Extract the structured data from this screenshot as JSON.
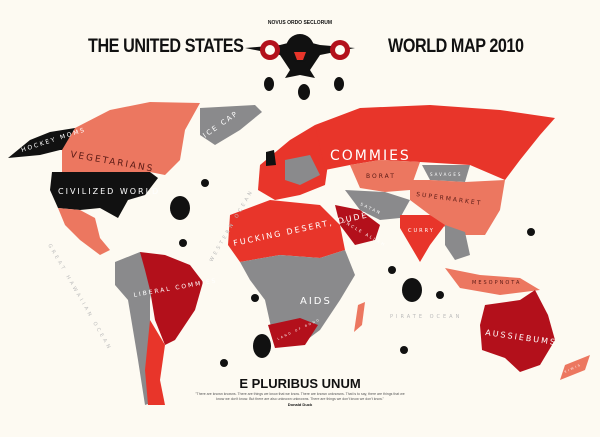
{
  "header": {
    "title_left": "THE UNITED STATES",
    "title_right": "WORLD MAP 2010",
    "emblem_text": "NOVUS ORDO SECLORUM"
  },
  "regions": {
    "alaska": "HOCKEY MOMS",
    "canada": "VEGETARIANS",
    "usa": "CIVILIZED WORLD",
    "greenland": "ICE CAP",
    "russia": "COMMIES",
    "central_asia": "BORAT",
    "mongolia": "SAVAGES",
    "china": "SUPERMARKET",
    "middle_east": "SATAN",
    "arabia": "UNCLE ALLAH",
    "india": "CURRY",
    "north_africa": "FUCKING DESERT, DUDE",
    "africa": "AIDS",
    "south_africa": "LAND OF BONO",
    "brazil": "LIBERAL COMMIES",
    "indonesia": "MESOPNOTA",
    "australia": "AUSSIEBUMS",
    "new_zealand": "KIWIS"
  },
  "oceans": {
    "pacific": "GREAT HAWAIIAN OCEAN",
    "atlantic": "WESTERN OCEAN",
    "indian": "PIRATE OCEAN"
  },
  "footer": {
    "motto": "E PLURIBUS UNUM",
    "quote": "\"There are known knowns. There are things we know that we know. There are known unknowns. That is to say, there are things that we know we don't know. But there are also unknown unknowns. There are things we don't know we don't know.\"",
    "author": "Donald Duck"
  },
  "colors": {
    "background": "#fdfaf2",
    "black": "#111111",
    "salmon": "#ec7760",
    "red": "#e8352a",
    "dark_red": "#b3101b",
    "gray": "#8a8a8c"
  }
}
